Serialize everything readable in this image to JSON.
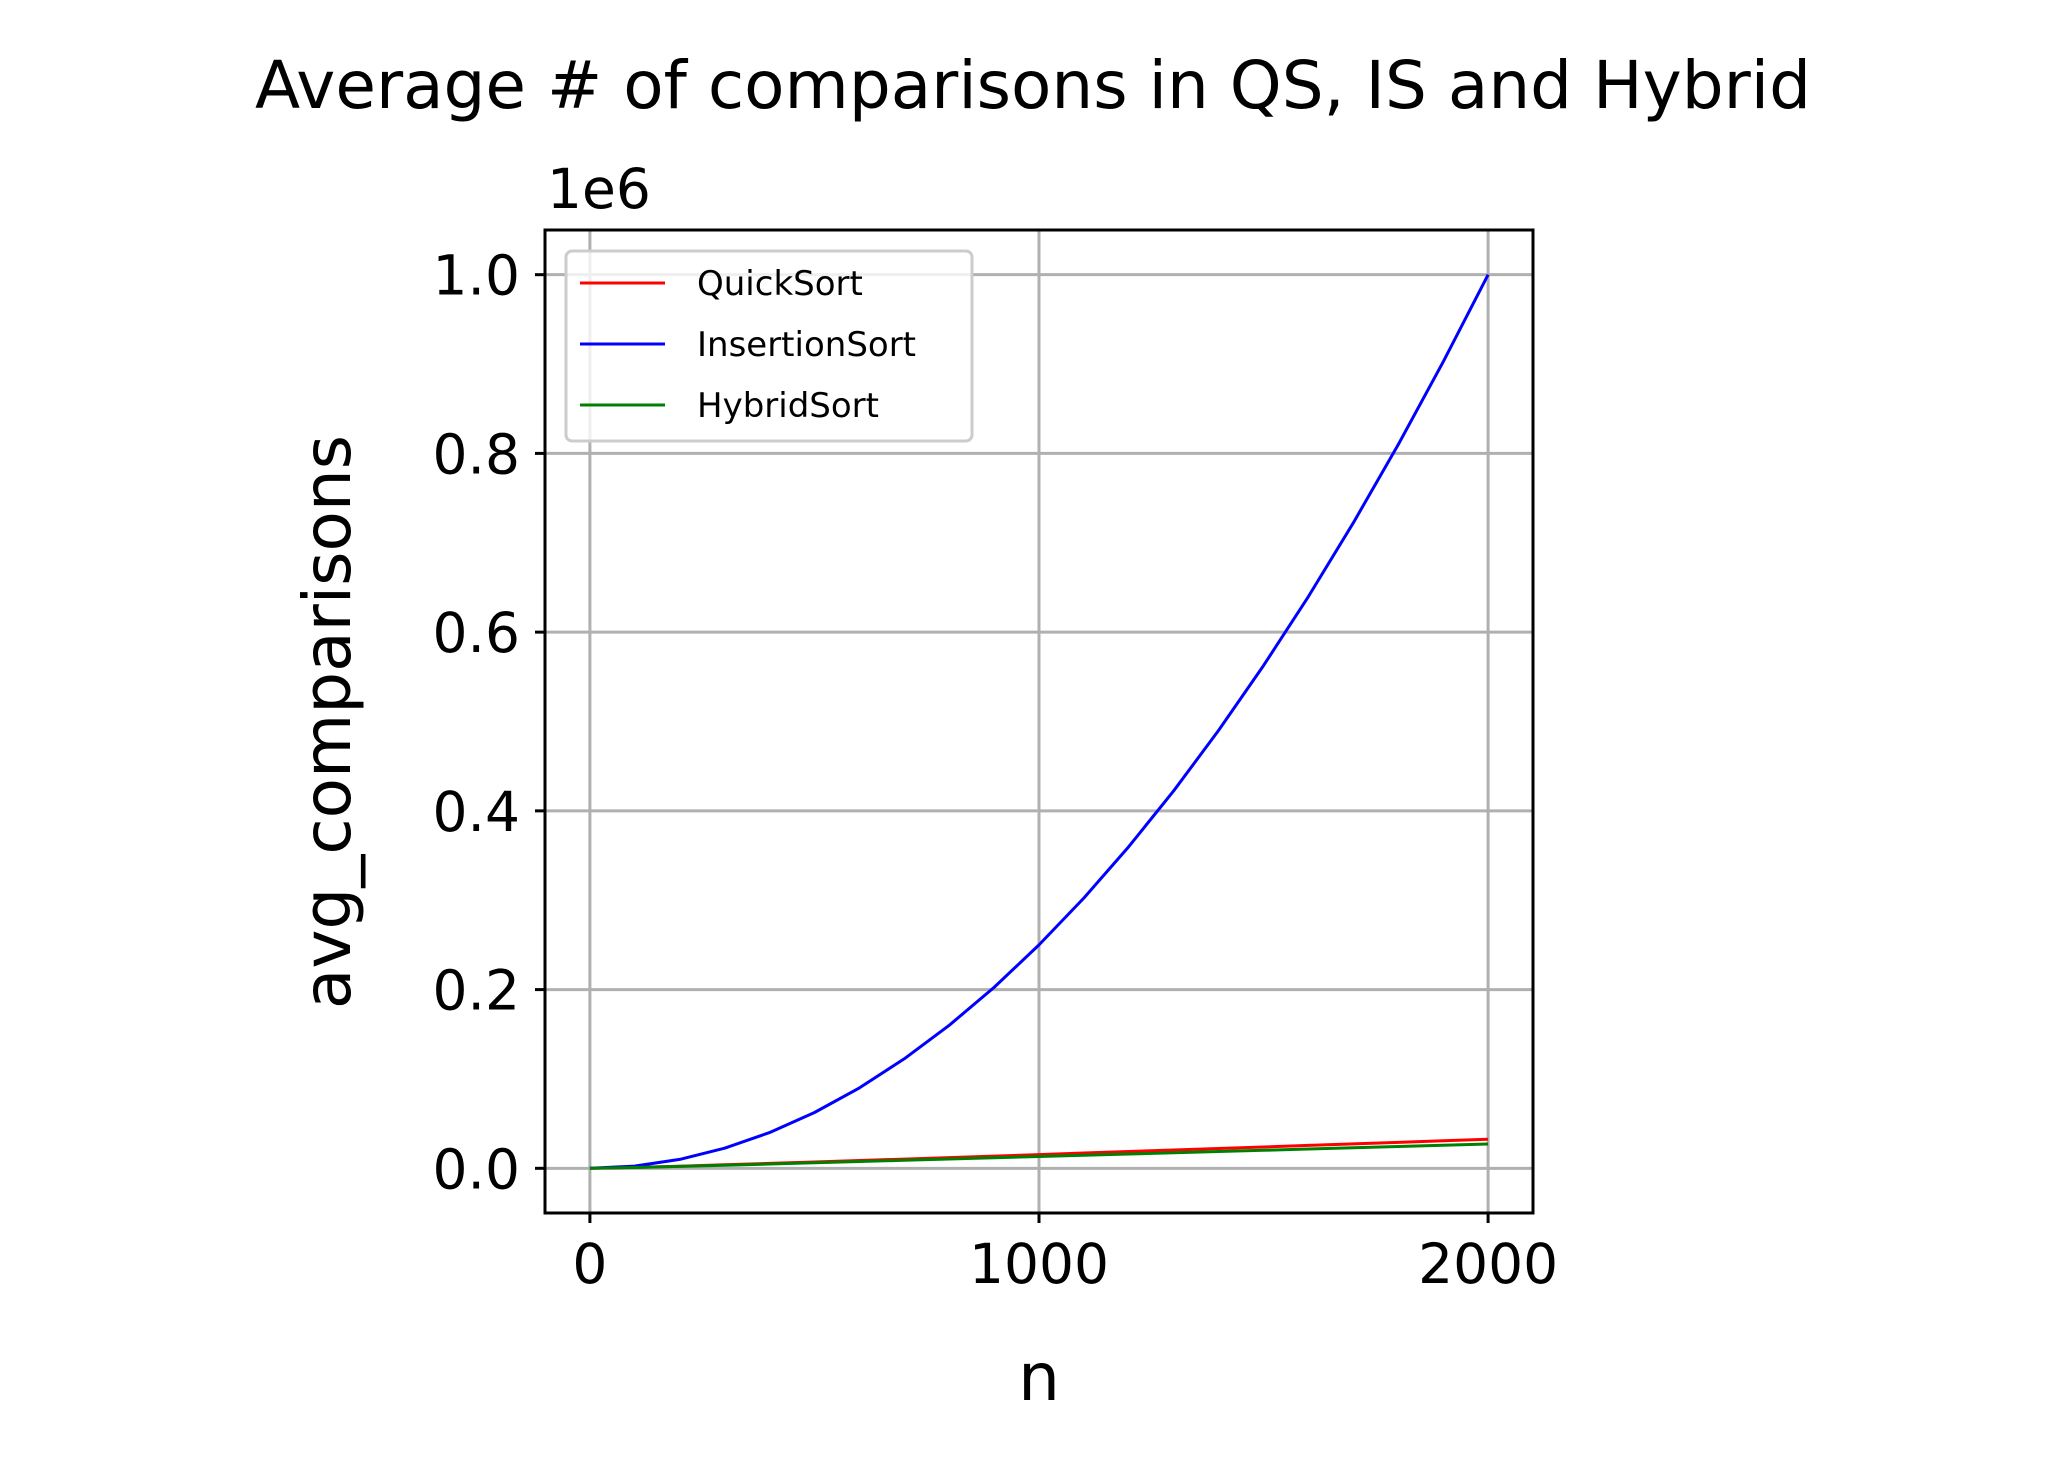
{
  "chart_data": {
    "type": "line",
    "title": "Average # of comparisons in QS, IS and Hybrid",
    "xlabel": "n",
    "ylabel": "avg_comparisons",
    "y_offset_label": "1e6",
    "y_scale_factor": 1000000,
    "xlim": [
      -100,
      2100
    ],
    "ylim": [
      -50000,
      1050000
    ],
    "x_ticks": [
      0,
      1000,
      2000
    ],
    "x_tick_labels": [
      "0",
      "1000",
      "2000"
    ],
    "y_ticks": [
      0,
      200000,
      400000,
      600000,
      800000,
      1000000
    ],
    "y_tick_labels": [
      "0.0",
      "0.2",
      "0.4",
      "0.6",
      "0.8",
      "1.0"
    ],
    "grid": true,
    "legend_position": "top-left",
    "x": [
      0,
      100,
      200,
      300,
      400,
      500,
      600,
      700,
      800,
      900,
      1000,
      1100,
      1200,
      1300,
      1400,
      1500,
      1600,
      1700,
      1800,
      1900,
      2000
    ],
    "series": [
      {
        "name": "QuickSort",
        "color": "#ff0000",
        "values": [
          0,
          1000,
          2400,
          3900,
          5500,
          7100,
          8700,
          10300,
          12000,
          13700,
          15400,
          17100,
          18800,
          20500,
          22200,
          23900,
          25600,
          27300,
          29000,
          30800,
          32500
        ]
      },
      {
        "name": "InsertionSort",
        "color": "#0000ff",
        "values": [
          0,
          2500,
          10000,
          22500,
          40000,
          62500,
          90000,
          122500,
          160000,
          202500,
          250000,
          302500,
          360000,
          422500,
          490000,
          562500,
          640000,
          722500,
          810000,
          902500,
          1000000
        ]
      },
      {
        "name": "HybridSort",
        "color": "#008000",
        "values": [
          0,
          900,
          2100,
          3400,
          4800,
          6200,
          7600,
          9000,
          10400,
          11800,
          13200,
          14600,
          16000,
          17400,
          18800,
          20200,
          21600,
          23000,
          24400,
          25800,
          27200
        ]
      }
    ]
  }
}
